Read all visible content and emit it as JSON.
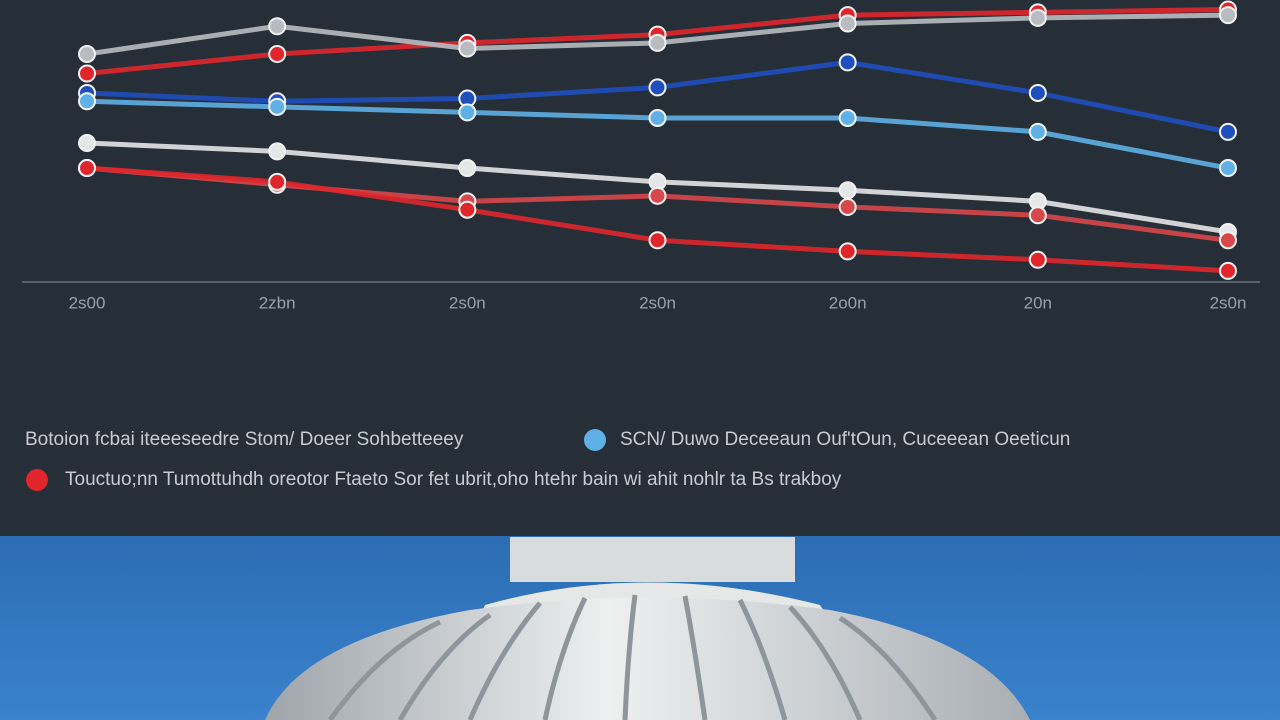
{
  "chart_data": {
    "type": "line",
    "categories": [
      "2s00",
      "2zbn",
      "2s0n",
      "2s0n",
      "2o0n",
      "20n",
      "2s0n"
    ],
    "ylim": [
      0,
      100
    ],
    "caption": "Botoion fcbai iteeeseedre Stom/ Doeer Sohbetteeey",
    "series": [
      {
        "color": "#e0262b",
        "values": [
          75,
          82,
          86,
          89,
          96,
          97,
          98
        ]
      },
      {
        "color": "#b8bcc0",
        "values": [
          82,
          92,
          84,
          86,
          93,
          95,
          96
        ]
      },
      {
        "color": "#1f4fbf",
        "values": [
          68,
          65,
          66,
          70,
          79,
          68,
          54
        ]
      },
      {
        "name": "SCN/ Duwo Deceeaun Ouf'tOun, Cuceeean Oeeticun",
        "color": "#5fb0e6",
        "values": [
          65,
          63,
          61,
          59,
          59,
          54,
          41
        ]
      },
      {
        "color": "#e4e6e8",
        "values": [
          50,
          47,
          41,
          36,
          33,
          29,
          18
        ]
      },
      {
        "color": "#d8474a",
        "values": [
          41,
          35,
          29,
          31,
          27,
          24,
          15
        ]
      },
      {
        "name": "Touctuo;nn Tumottuhdh oreotor Ftaeto Sor fet ubrit,oho htehr bain wi ahit nohlr ta Bs trakboy",
        "color": "#e0262b",
        "values": [
          41,
          36,
          26,
          15,
          11,
          8,
          4
        ]
      }
    ]
  }
}
